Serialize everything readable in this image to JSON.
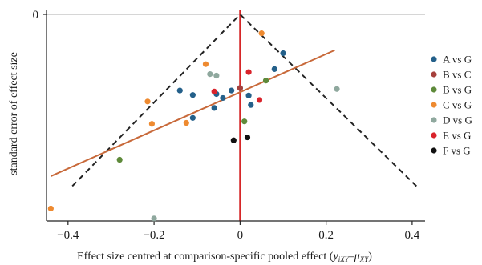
{
  "chart_data": {
    "type": "scatter",
    "title": "",
    "xlabel_main": "Effect size centred at comparison-specific pooled effect (",
    "xlabel_sym_y": "y",
    "xlabel_sub_y": "iXY",
    "xlabel_minus": "–",
    "xlabel_sym_mu": "μ",
    "xlabel_sub_mu": "XY",
    "xlabel_close": ")",
    "ylabel": "standard error of effect size",
    "xlim": [
      -0.45,
      0.43
    ],
    "ylim": [
      0.415,
      0.0
    ],
    "y_reversed": true,
    "x_ticks": [
      {
        "value": -0.4,
        "label": "−0.4"
      },
      {
        "value": -0.2,
        "label": "−0.2"
      },
      {
        "value": 0.0,
        "label": "0"
      },
      {
        "value": 0.2,
        "label": "0.2"
      },
      {
        "value": 0.4,
        "label": "0.4"
      }
    ],
    "y_ticks": [
      {
        "value": 0.0,
        "label": "0"
      }
    ],
    "reference_hline": {
      "y": 0.0,
      "color": "#bdbdbd"
    },
    "reference_vline": {
      "x": 0.0,
      "color": "#d62728"
    },
    "funnel": {
      "apex": [
        0.0,
        0.0
      ],
      "left_base": [
        -0.39,
        0.345
      ],
      "right_base": [
        0.41,
        0.345
      ],
      "color": "#222222",
      "style": "dashed"
    },
    "regression_line": {
      "x": [
        -0.44,
        0.22
      ],
      "y": [
        0.325,
        0.072
      ],
      "color": "#c8693a"
    },
    "legend_position": "right",
    "series": [
      {
        "name": "A vs G",
        "color": "#24608a",
        "points": [
          {
            "x": 0.1,
            "y": 0.078
          },
          {
            "x": 0.08,
            "y": 0.11
          },
          {
            "x": 0.0,
            "y": 0.148
          },
          {
            "x": -0.02,
            "y": 0.153
          },
          {
            "x": -0.04,
            "y": 0.168
          },
          {
            "x": -0.055,
            "y": 0.16
          },
          {
            "x": -0.06,
            "y": 0.188
          },
          {
            "x": -0.11,
            "y": 0.162
          },
          {
            "x": -0.14,
            "y": 0.153
          },
          {
            "x": -0.11,
            "y": 0.208
          },
          {
            "x": 0.02,
            "y": 0.163
          },
          {
            "x": 0.025,
            "y": 0.182
          }
        ]
      },
      {
        "name": "B vs C",
        "color": "#a6403c",
        "points": [
          {
            "x": 0.0,
            "y": 0.148
          }
        ]
      },
      {
        "name": "B vs G",
        "color": "#5e8a3a",
        "points": [
          {
            "x": 0.06,
            "y": 0.133
          },
          {
            "x": 0.01,
            "y": 0.215
          },
          {
            "x": -0.28,
            "y": 0.292
          }
        ]
      },
      {
        "name": "C vs G",
        "color": "#ee8a30",
        "points": [
          {
            "x": 0.05,
            "y": 0.038
          },
          {
            "x": -0.08,
            "y": 0.1
          },
          {
            "x": -0.215,
            "y": 0.175
          },
          {
            "x": -0.205,
            "y": 0.22
          },
          {
            "x": -0.125,
            "y": 0.218
          },
          {
            "x": -0.44,
            "y": 0.39
          }
        ]
      },
      {
        "name": "D vs G",
        "color": "#8fa89e",
        "points": [
          {
            "x": -0.07,
            "y": 0.12
          },
          {
            "x": -0.055,
            "y": 0.123
          },
          {
            "x": 0.225,
            "y": 0.15
          },
          {
            "x": -0.2,
            "y": 0.41
          }
        ]
      },
      {
        "name": "E vs G",
        "color": "#d9232b",
        "points": [
          {
            "x": 0.02,
            "y": 0.116
          },
          {
            "x": -0.06,
            "y": 0.155
          },
          {
            "x": 0.045,
            "y": 0.172
          }
        ]
      },
      {
        "name": "F vs G",
        "color": "#111111",
        "points": [
          {
            "x": -0.015,
            "y": 0.253
          },
          {
            "x": 0.017,
            "y": 0.247
          }
        ]
      }
    ]
  }
}
